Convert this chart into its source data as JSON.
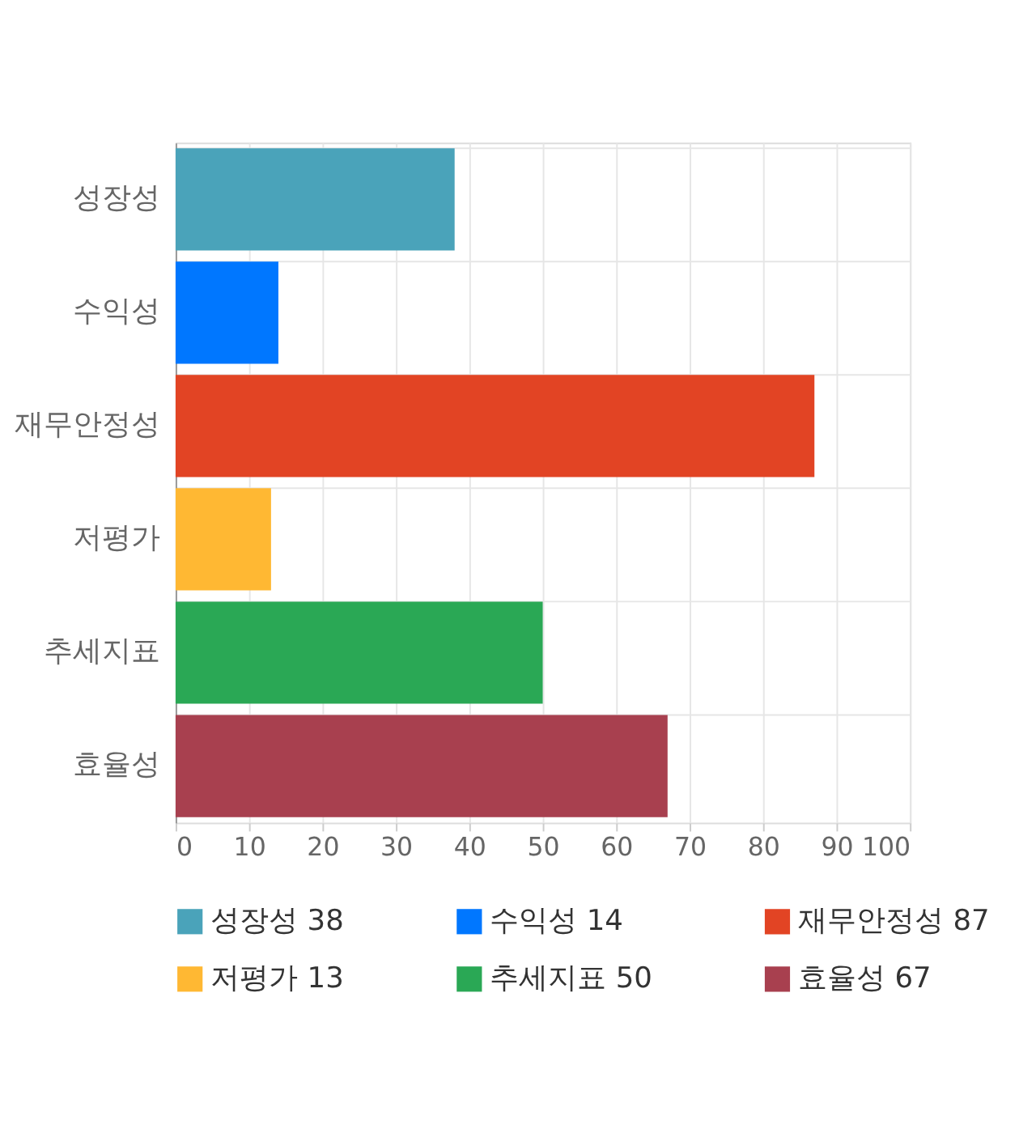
{
  "chart_data": {
    "type": "bar",
    "orientation": "horizontal",
    "categories": [
      "성장성",
      "수익성",
      "재무안정성",
      "저평가",
      "추세지표",
      "효율성"
    ],
    "series": [
      {
        "name": "성장성 38",
        "color": "#4aa3ba",
        "values": [
          38,
          null,
          null,
          null,
          null,
          null
        ]
      },
      {
        "name": "수익성 14",
        "color": "#0077ff",
        "values": [
          null,
          14,
          null,
          null,
          null,
          null
        ]
      },
      {
        "name": "재무안정성 87",
        "color": "#e24424",
        "values": [
          null,
          null,
          87,
          null,
          null,
          null
        ]
      },
      {
        "name": "저평가 13",
        "color": "#ffb833",
        "values": [
          null,
          null,
          null,
          13,
          null,
          null
        ]
      },
      {
        "name": "추세지표 50",
        "color": "#2aa855",
        "values": [
          null,
          null,
          null,
          null,
          50,
          null
        ]
      },
      {
        "name": "효율성 67",
        "color": "#a8404f",
        "values": [
          null,
          null,
          null,
          null,
          null,
          67
        ]
      }
    ],
    "xlim": [
      0,
      100
    ],
    "xticks": [
      0,
      10,
      20,
      30,
      40,
      50,
      60,
      70,
      80,
      90,
      100
    ],
    "grid": true,
    "legend": "bottom"
  }
}
